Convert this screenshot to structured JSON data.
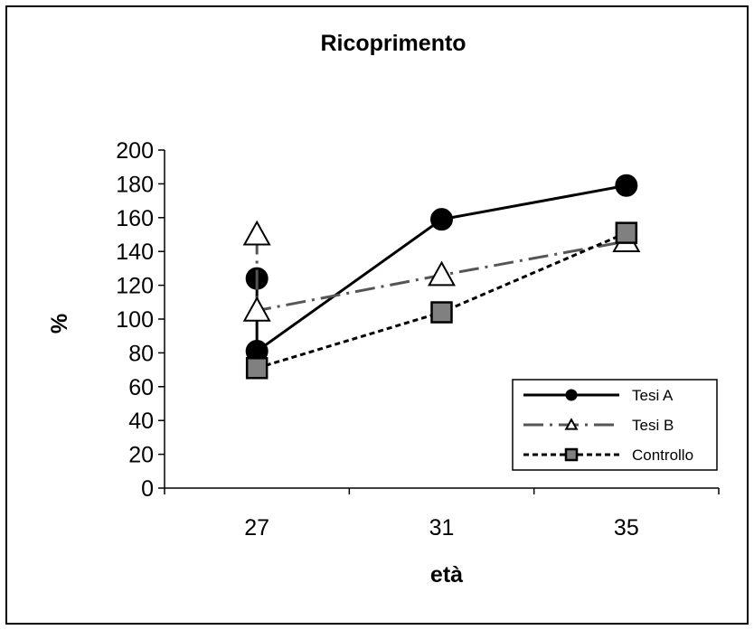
{
  "chart_data": {
    "type": "line",
    "title": "Ricoprimento",
    "xlabel": "età",
    "ylabel": "%",
    "categories": [
      "27",
      "31",
      "35"
    ],
    "ylim": [
      0,
      200
    ],
    "yticks": [
      0,
      20,
      40,
      60,
      80,
      100,
      120,
      140,
      160,
      180,
      200
    ],
    "grid": false,
    "legend_position": "bottom-right",
    "series": [
      {
        "name": "Tesi A",
        "style": "solid",
        "marker": "circle",
        "color": "#000000",
        "points": [
          {
            "x": "27",
            "y": 124
          },
          {
            "x": "27",
            "y": 81
          },
          {
            "x": "31",
            "y": 159
          },
          {
            "x": "35",
            "y": 179
          }
        ]
      },
      {
        "name": "Tesi B",
        "style": "dash-dot",
        "marker": "triangle",
        "color": "#555555",
        "points": [
          {
            "x": "27",
            "y": 150
          },
          {
            "x": "27",
            "y": 105
          },
          {
            "x": "31",
            "y": 126
          },
          {
            "x": "35",
            "y": 146
          }
        ]
      },
      {
        "name": "Controllo",
        "style": "dotted",
        "marker": "square",
        "color": "#808080",
        "points": [
          {
            "x": "27",
            "y": 71
          },
          {
            "x": "31",
            "y": 104
          },
          {
            "x": "35",
            "y": 151
          }
        ]
      }
    ]
  }
}
